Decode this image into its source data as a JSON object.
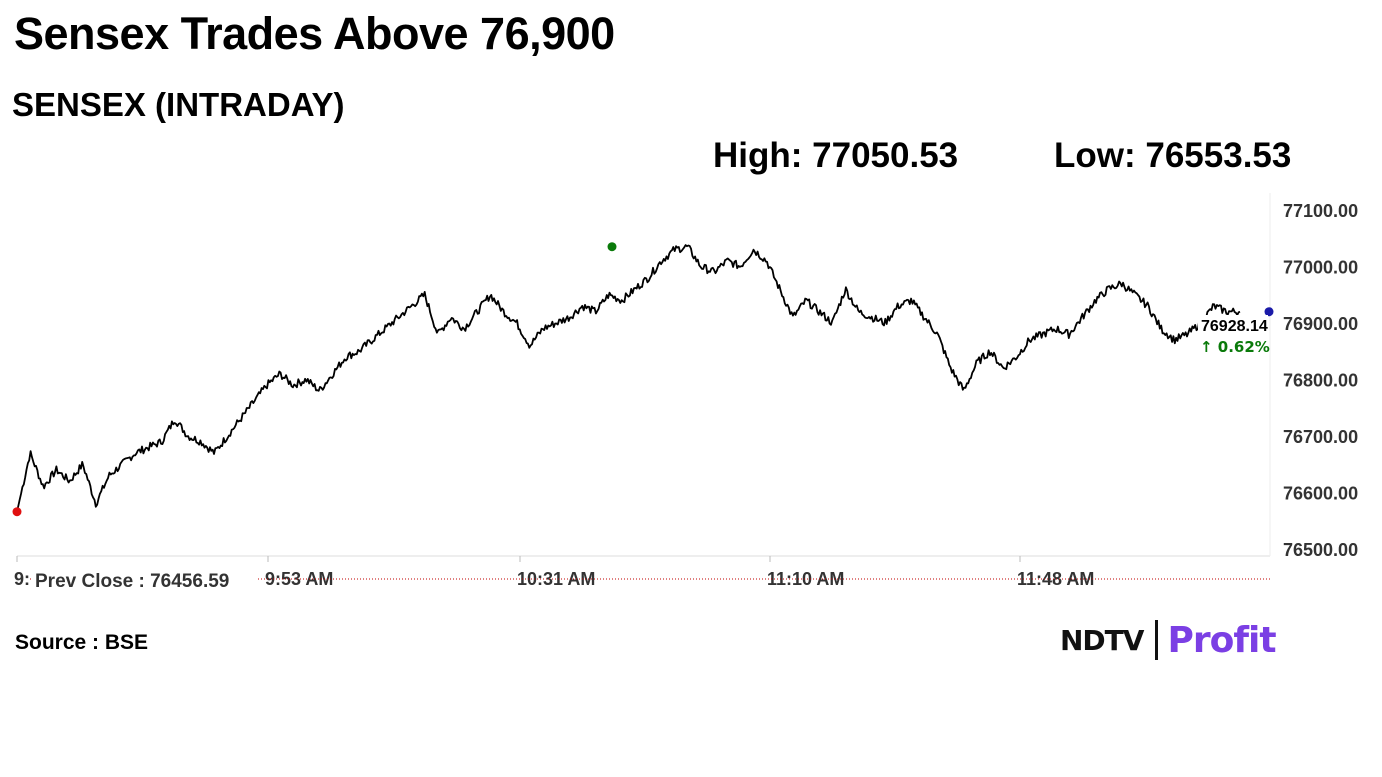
{
  "headline": "Sensex Trades Above 76,900",
  "subheading": "SENSEX (INTRADAY)",
  "stats": {
    "high": "High: 77050.53",
    "low": "Low: 76553.53"
  },
  "source": "Source : BSE",
  "logo": {
    "left": "NDTV",
    "right": "Profit"
  },
  "colors": {
    "line": "#000000",
    "start_marker": "#e01010",
    "high_marker": "#0a7a0a",
    "end_marker": "#1a1aa8",
    "change_positive": "#0a7a0a",
    "prev_close_line": "#c00000",
    "logo_profit": "#7b3fe4"
  },
  "chart_data": {
    "type": "line",
    "x_ticks": [
      "9:",
      "9:53 AM",
      "10:31 AM",
      "11:10 AM",
      "11:48 AM"
    ],
    "y_ticks": [
      "77100.00",
      "77000.00",
      "76900.00",
      "76800.00",
      "76700.00",
      "76600.00",
      "76500.00"
    ],
    "ylim": [
      76500,
      77100
    ],
    "prev_close_label": "Prev Close : 76456.59",
    "last_value_label": "76928.14",
    "change_label": "↑ 0.62%",
    "markers": {
      "start": 76566,
      "high": 77035,
      "end": 76920
    },
    "series": [
      {
        "values": [
          76566,
          76670,
          76610,
          76640,
          76620,
          76650,
          76580,
          76630,
          76650,
          76670,
          76680,
          76690,
          76730,
          76700,
          76690,
          76670,
          76700,
          76730,
          76760,
          76790,
          76810,
          76790,
          76800,
          76780,
          76810,
          76840,
          76850,
          76870,
          76890,
          76910,
          76930,
          76950,
          76880,
          76910,
          76890,
          76920,
          76950,
          76920,
          76900,
          76860,
          76890,
          76900,
          76910,
          76930,
          76920,
          76950,
          76940,
          76960,
          76980,
          77010,
          77030,
          77035,
          77000,
          76990,
          77010,
          77000,
          77030,
          77010,
          76960,
          76910,
          76940,
          76920,
          76900,
          76960,
          76920,
          76910,
          76900,
          76930,
          76940,
          76910,
          76880,
          76820,
          76780,
          76830,
          76850,
          76820,
          76840,
          76870,
          76880,
          76890,
          76880,
          76910,
          76940,
          76960,
          76970,
          76950,
          76930,
          76890,
          76870,
          76880,
          76900,
          76930,
          76920,
          76920
        ]
      }
    ]
  }
}
